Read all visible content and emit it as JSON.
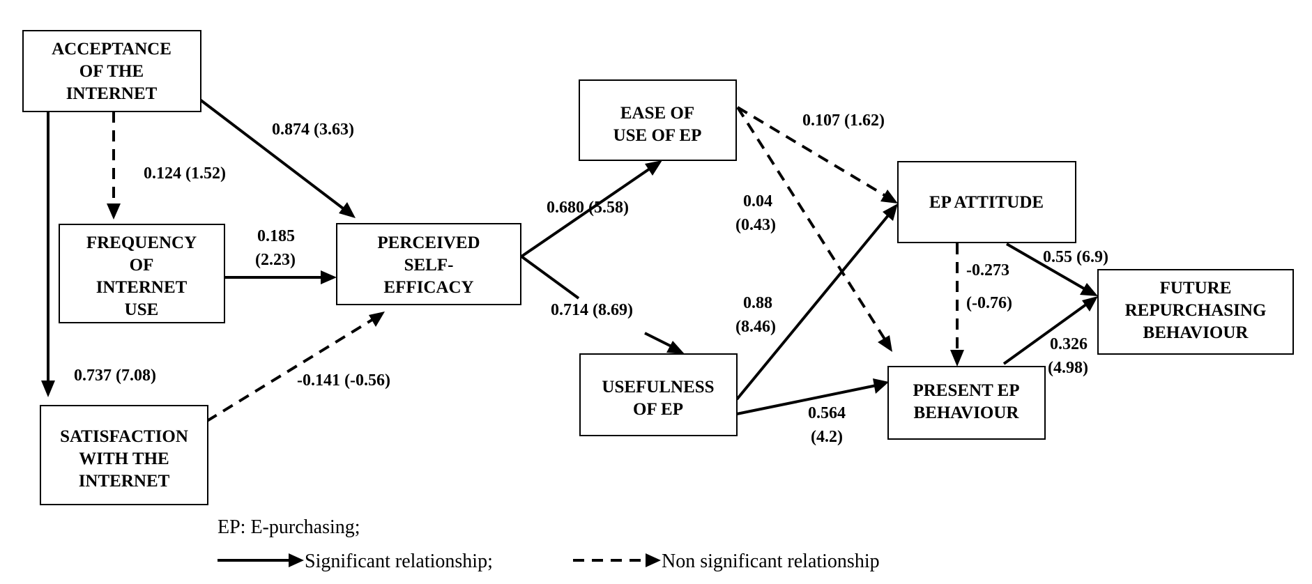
{
  "nodes": {
    "acceptance": [
      "ACCEPTANCE",
      "OF THE",
      "INTERNET"
    ],
    "frequency": [
      "FREQUENCY",
      "OF",
      "INTERNET",
      "USE"
    ],
    "satisfaction": [
      "SATISFACTION",
      "WITH THE",
      "INTERNET"
    ],
    "self_efficacy": [
      "PERCEIVED",
      "SELF-",
      "EFFICACY"
    ],
    "ease_of_use": [
      "EASE OF",
      "USE OF EP"
    ],
    "usefulness": [
      "USEFULNESS",
      "OF EP"
    ],
    "attitude": [
      "EP ATTITUDE"
    ],
    "present_behaviour": [
      "PRESENT EP",
      "BEHAVIOUR"
    ],
    "future_behaviour": [
      "FUTURE",
      "REPURCHASING",
      "BEHAVIOUR"
    ]
  },
  "edges": [
    {
      "id": "acc-freq",
      "from": "ACCEPTANCE OF THE INTERNET",
      "to": "FREQUENCY OF INTERNET USE",
      "significant": false,
      "label": [
        "0.124 (1.52)"
      ]
    },
    {
      "id": "acc-pse",
      "from": "ACCEPTANCE OF THE INTERNET",
      "to": "PERCEIVED SELF-EFFICACY",
      "significant": true,
      "label": [
        "0.874 (3.63)"
      ]
    },
    {
      "id": "acc-sat",
      "from": "ACCEPTANCE OF THE INTERNET",
      "to": "SATISFACTION WITH THE INTERNET",
      "significant": true,
      "label": [
        "0.737 (7.08)"
      ]
    },
    {
      "id": "freq-pse",
      "from": "FREQUENCY OF INTERNET USE",
      "to": "PERCEIVED SELF-EFFICACY",
      "significant": true,
      "label": [
        "0.185",
        "(2.23)"
      ]
    },
    {
      "id": "sat-pse",
      "from": "SATISFACTION WITH THE INTERNET",
      "to": "PERCEIVED SELF-EFFICACY",
      "significant": false,
      "label": [
        "-0.141 (-0.56)"
      ]
    },
    {
      "id": "pse-ease",
      "from": "PERCEIVED SELF-EFFICACY",
      "to": "EASE OF USE OF EP",
      "significant": true,
      "label": [
        "0.680 (5.58)"
      ]
    },
    {
      "id": "pse-useful",
      "from": "PERCEIVED SELF-EFFICACY",
      "to": "USEFULNESS OF EP",
      "significant": true,
      "label": [
        "0.714 (8.69)"
      ]
    },
    {
      "id": "ease-att",
      "from": "EASE OF USE OF EP",
      "to": "EP ATTITUDE",
      "significant": false,
      "label": [
        "0.107 (1.62)"
      ]
    },
    {
      "id": "ease-present",
      "from": "EASE OF USE OF EP",
      "to": "PRESENT EP BEHAVIOUR",
      "significant": false,
      "label": [
        "0.04",
        "(0.43)"
      ]
    },
    {
      "id": "useful-att",
      "from": "USEFULNESS OF EP",
      "to": "EP ATTITUDE",
      "significant": true,
      "label": [
        "0.88",
        "(8.46)"
      ]
    },
    {
      "id": "useful-present",
      "from": "USEFULNESS OF EP",
      "to": "PRESENT EP BEHAVIOUR",
      "significant": true,
      "label": [
        "0.564",
        "(4.2)"
      ]
    },
    {
      "id": "att-present",
      "from": "EP ATTITUDE",
      "to": "PRESENT EP BEHAVIOUR",
      "significant": false,
      "label": [
        "-0.273",
        "(-0.76)"
      ]
    },
    {
      "id": "att-future",
      "from": "EP ATTITUDE",
      "to": "FUTURE REPURCHASING BEHAVIOUR",
      "significant": true,
      "label": [
        "0.55 (6.9)"
      ]
    },
    {
      "id": "present-future",
      "from": "PRESENT EP BEHAVIOUR",
      "to": "FUTURE REPURCHASING BEHAVIOUR",
      "significant": true,
      "label": [
        "0.326",
        "(4.98)"
      ]
    }
  ],
  "legend": {
    "abbreviation": "EP: E-purchasing;",
    "significant": "Significant relationship;",
    "non_significant": "Non significant relationship"
  }
}
